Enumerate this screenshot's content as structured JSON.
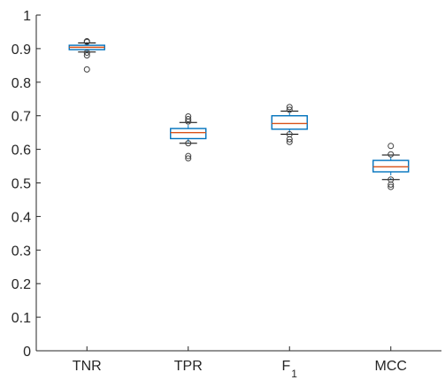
{
  "chart_data": {
    "type": "box",
    "title": "",
    "xlabel": "",
    "ylabel": "",
    "ylim": [
      0,
      1
    ],
    "yticks": [
      0,
      0.1,
      0.2,
      0.3,
      0.4,
      0.5,
      0.6,
      0.7,
      0.8,
      0.9,
      1
    ],
    "ytick_labels": [
      "0",
      "0.1",
      "0.2",
      "0.3",
      "0.4",
      "0.5",
      "0.6",
      "0.7",
      "0.8",
      "0.9",
      "1"
    ],
    "grid": false,
    "box_color": "#0072BD",
    "median_color": "#D95319",
    "outlier_color": "#404040",
    "categories": [
      {
        "label": "TNR",
        "sub": "",
        "q1": 0.897,
        "median": 0.904,
        "q3": 0.91,
        "whisker_low": 0.89,
        "whisker_high": 0.917,
        "outliers": [
          0.838,
          0.88,
          0.888,
          0.92,
          0.922
        ]
      },
      {
        "label": "TPR",
        "sub": "",
        "q1": 0.632,
        "median": 0.65,
        "q3": 0.662,
        "whisker_low": 0.618,
        "whisker_high": 0.68,
        "outliers": [
          0.573,
          0.58,
          0.618,
          0.683,
          0.69,
          0.698
        ]
      },
      {
        "label": "F",
        "sub": "1",
        "q1": 0.66,
        "median": 0.677,
        "q3": 0.7,
        "whisker_low": 0.645,
        "whisker_high": 0.714,
        "outliers": [
          0.622,
          0.63,
          0.645,
          0.718,
          0.726
        ]
      },
      {
        "label": "MCC",
        "sub": "",
        "q1": 0.533,
        "median": 0.548,
        "q3": 0.567,
        "whisker_low": 0.51,
        "whisker_high": 0.583,
        "outliers": [
          0.488,
          0.495,
          0.51,
          0.585,
          0.61
        ]
      }
    ]
  }
}
